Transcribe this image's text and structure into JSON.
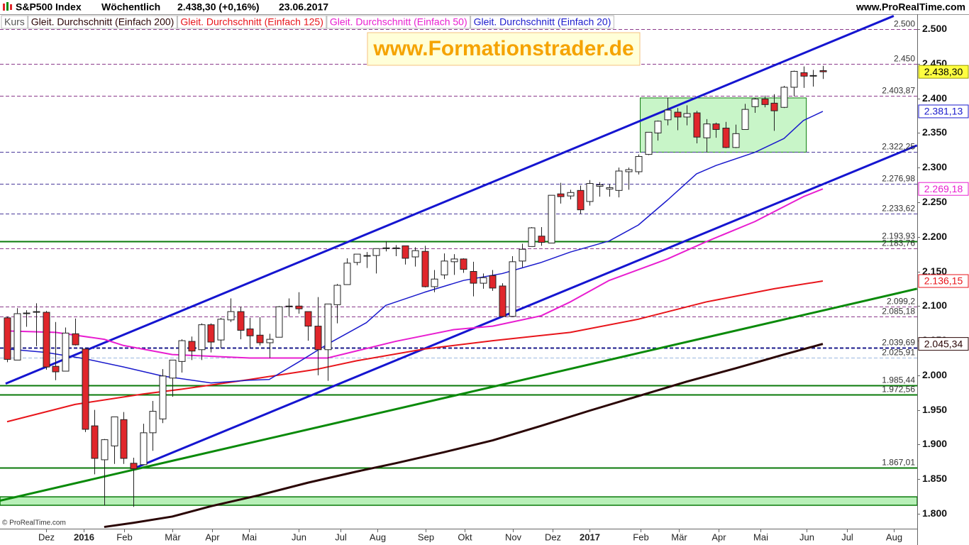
{
  "header": {
    "title": "S&P500 Index",
    "period": "Wöchentlich",
    "quote": "2.438,30 (+0,16%)",
    "date": "23.06.2017",
    "source": "www.ProRealTime.com"
  },
  "watermark": "www.Formationstrader.de",
  "copyright": "© ProRealTime.com",
  "chart_data": {
    "type": "candlestick",
    "legend_label": "Kurs",
    "candles": {
      "open": [
        2083,
        2022,
        2089,
        2091,
        2091,
        2013,
        2006,
        2060,
        2038,
        1927,
        1878,
        1898,
        1936,
        1873,
        1871,
        1917,
        1937,
        1996,
        2020,
        2049,
        2037,
        2073,
        2051,
        2080,
        2092,
        2067,
        2058,
        2047,
        2055,
        2100,
        2100,
        2092,
        2071,
        2037,
        2102,
        2131,
        2163,
        2173,
        2173,
        2184,
        2183,
        2187,
        2171,
        2179,
        2128,
        2145,
        2164,
        2168,
        2150,
        2133,
        2144,
        2129,
        2085,
        2165,
        2186,
        2201,
        2191,
        2262,
        2259,
        2267,
        2251,
        2273,
        2269,
        2267,
        2294,
        2294,
        2319,
        2350,
        2369,
        2380,
        2373,
        2379,
        2343,
        2363,
        2357,
        2329,
        2355,
        2388,
        2399,
        2393,
        2387,
        2416,
        2437,
        2432,
        2440
      ],
      "high": [
        2085,
        2097,
        2094,
        2104,
        2093,
        2077,
        2069,
        2082,
        2038,
        1950,
        1908,
        1940,
        1947,
        1881,
        1930,
        1963,
        2009,
        2022,
        2052,
        2056,
        2075,
        2075,
        2083,
        2111,
        2099,
        2083,
        2084,
        2060,
        2100,
        2111,
        2120,
        2092,
        2113,
        2103,
        2132,
        2169,
        2175,
        2178,
        2183,
        2194,
        2188,
        2187,
        2185,
        2187,
        2152,
        2176,
        2175,
        2169,
        2164,
        2147,
        2152,
        2133,
        2172,
        2190,
        2214,
        2214,
        2260,
        2278,
        2268,
        2274,
        2282,
        2279,
        2276,
        2300,
        2300,
        2319,
        2351,
        2368,
        2401,
        2386,
        2390,
        2382,
        2370,
        2365,
        2366,
        2362,
        2392,
        2401,
        2404,
        2406,
        2418,
        2440,
        2446,
        2441,
        2447
      ],
      "low": [
        2019,
        2022,
        2070,
        2042,
        2008,
        1993,
        2006,
        2043,
        1918,
        1857,
        1812,
        1872,
        1872,
        1810,
        1871,
        1891,
        1931,
        1969,
        2004,
        2022,
        2022,
        2033,
        2039,
        2077,
        2052,
        2039,
        2043,
        2025,
        2055,
        2085,
        2089,
        2050,
        2000,
        1992,
        2075,
        2131,
        2159,
        2155,
        2147,
        2179,
        2172,
        2160,
        2157,
        2127,
        2120,
        2139,
        2145,
        2148,
        2114,
        2125,
        2122,
        2084,
        2084,
        2156,
        2186,
        2187,
        2191,
        2248,
        2254,
        2233,
        2245,
        2258,
        2258,
        2257,
        2268,
        2290,
        2318,
        2339,
        2361,
        2354,
        2361,
        2335,
        2322,
        2343,
        2328,
        2328,
        2355,
        2379,
        2387,
        2353,
        2386,
        2403,
        2415,
        2417,
        2428
      ],
      "close": [
        2023,
        2089,
        2090,
        2092,
        2012,
        2005,
        2061,
        2044,
        1922,
        1880,
        1907,
        1940,
        1880,
        1865,
        1917,
        1948,
        1999,
        2022,
        2050,
        2035,
        2073,
        2048,
        2081,
        2092,
        2065,
        2057,
        2047,
        2052,
        2099,
        2099,
        2096,
        2071,
        2037,
        2103,
        2130,
        2162,
        2175,
        2173,
        2183,
        2184,
        2184,
        2169,
        2180,
        2128,
        2139,
        2165,
        2168,
        2153,
        2133,
        2141,
        2126,
        2085,
        2164,
        2182,
        2213,
        2192,
        2260,
        2258,
        2264,
        2239,
        2277,
        2275,
        2271,
        2295,
        2297,
        2316,
        2351,
        2367,
        2383,
        2373,
        2378,
        2344,
        2363,
        2355,
        2329,
        2349,
        2384,
        2399,
        2391,
        2382,
        2416,
        2439,
        2432,
        2433,
        2438.3
      ],
      "up_color": "#ffffff",
      "down_color": "#e0262b",
      "last_close_label": "2.438,30"
    },
    "series": [
      {
        "name": "Gleit. Durchschnitt (Einfach 200)",
        "color": "#2a0505",
        "width": 3,
        "x": [
          10,
          13,
          17,
          21,
          26,
          31,
          36,
          40,
          45,
          50,
          55,
          60,
          65,
          70,
          75,
          80,
          84
        ],
        "values": [
          1781,
          1787,
          1796,
          1811,
          1827,
          1845,
          1861,
          1873,
          1889,
          1906,
          1927,
          1949,
          1970,
          1991,
          2010,
          2030,
          2045.34
        ],
        "value_labels": [
          null,
          null,
          null,
          null,
          null,
          null,
          null,
          null,
          null,
          null,
          null,
          null,
          null,
          null,
          null,
          null,
          "2.045,34"
        ]
      },
      {
        "name": "Gleit. Durchschnitt (Einfach 125)",
        "color": "#e8151b",
        "width": 2,
        "x": [
          0,
          7,
          14,
          18,
          25,
          32,
          36,
          43,
          50,
          58,
          65,
          72,
          79,
          84
        ],
        "values": [
          1933,
          1958,
          1973,
          1980,
          1994,
          2009,
          2021,
          2038,
          2050,
          2062,
          2081,
          2106,
          2125,
          2136.15
        ],
        "value_labels": [
          null,
          null,
          null,
          null,
          null,
          null,
          null,
          null,
          null,
          null,
          null,
          null,
          null,
          "2.136,15"
        ]
      },
      {
        "name": "Gleit. Durchschnitt (Einfach 50)",
        "color": "#e81ed0",
        "width": 2,
        "x": [
          0,
          5,
          10,
          12,
          17,
          25,
          33,
          40,
          46,
          50,
          55,
          58,
          62,
          68,
          72,
          77,
          82,
          84
        ],
        "values": [
          2064,
          2062,
          2052,
          2043,
          2030,
          2025,
          2025,
          2049,
          2066,
          2071,
          2086,
          2106,
          2137,
          2168,
          2193,
          2222,
          2258,
          2269.18
        ],
        "value_labels": [
          null,
          null,
          null,
          null,
          null,
          null,
          null,
          null,
          null,
          null,
          null,
          null,
          null,
          null,
          null,
          null,
          null,
          "2.269,18"
        ]
      },
      {
        "name": "Gleit. Durchschnitt (Einfach 20)",
        "color": "#1a1acc",
        "width": 1.5,
        "x": [
          0,
          4,
          8,
          12,
          16,
          21,
          25,
          27,
          30,
          33,
          37,
          39,
          43,
          47,
          51,
          55,
          58,
          62,
          65,
          68,
          71,
          73,
          77,
          80,
          82,
          84
        ],
        "values": [
          2038,
          2033,
          2024,
          2012,
          1999,
          1989,
          1993,
          1994,
          2019,
          2045,
          2076,
          2101,
          2120,
          2137,
          2147,
          2163,
          2178,
          2194,
          2217,
          2253,
          2291,
          2303,
          2322,
          2342,
          2368,
          2381.13
        ],
        "value_labels": [
          null,
          null,
          null,
          null,
          null,
          null,
          null,
          null,
          null,
          null,
          null,
          null,
          null,
          null,
          null,
          null,
          null,
          null,
          null,
          null,
          null,
          null,
          null,
          null,
          null,
          "2.381,13"
        ]
      }
    ],
    "levels": [
      {
        "value": 2500,
        "label": "2.500",
        "color": "#8b3a8b",
        "style": "dashed",
        "width": 1
      },
      {
        "value": 2450,
        "label": "2.450",
        "color": "#8b3a8b",
        "style": "dashed",
        "width": 1
      },
      {
        "value": 2403.87,
        "label": "2.403,87",
        "color": "#8b3a8b",
        "style": "dashed",
        "width": 1
      },
      {
        "value": 2322.25,
        "label": "2.322,25",
        "color": "#4a3a9b",
        "style": "dashed",
        "width": 1
      },
      {
        "value": 2276.98,
        "label": "2.276,98",
        "color": "#4a3a9b",
        "style": "dashed",
        "width": 1
      },
      {
        "value": 2233.62,
        "label": "2.233,62",
        "color": "#4a3a9b",
        "style": "dashed",
        "width": 1
      },
      {
        "value": 2193.93,
        "label": "2.193,93",
        "color": "#0a7a0a",
        "style": "solid",
        "width": 2
      },
      {
        "value": 2183.76,
        "label": "2.183,76",
        "color": "#8b3a8b",
        "style": "dashed",
        "width": 1
      },
      {
        "value": 2099.2,
        "label": "2.099,2",
        "color": "#8b3a8b",
        "style": "dashed",
        "width": 1
      },
      {
        "value": 2085.18,
        "label": "2.085,18",
        "color": "#8b3a8b",
        "style": "dashed",
        "width": 1
      },
      {
        "value": 2039.69,
        "label": "2.039,69",
        "color": "#1a1a8b",
        "style": "dashed",
        "width": 2
      },
      {
        "value": 2025.91,
        "label": "2.025,91",
        "color": "#9ab8e0",
        "style": "dashed",
        "width": 1
      },
      {
        "value": 1985.44,
        "label": "1.985,44",
        "color": "#0a7a0a",
        "style": "solid",
        "width": 2
      },
      {
        "value": 1972.56,
        "label": "1.972,56",
        "color": "#0a7a0a",
        "style": "solid",
        "width": 2
      },
      {
        "value": 1867.01,
        "label": "1.867,01",
        "color": "#0a7a0a",
        "style": "solid",
        "width": 2
      }
    ],
    "zone": {
      "values": [
        1812.3,
        1824.5
      ],
      "color": "#b8f0b8",
      "border": "#0a7a0a"
    },
    "box": {
      "x": [
        65.2,
        82.3
      ],
      "values": [
        2322.25,
        2400.6
      ],
      "color": "#c8f5c8",
      "border": "#0a7a0a"
    },
    "trendlines": [
      {
        "color": "#1515d0",
        "x": [
          -0.15,
          91.3
        ],
        "values": [
          1988,
          2519
        ]
      },
      {
        "color": "#1515d0",
        "x": [
          13.15,
          93.7
        ],
        "values": [
          1866,
          2332
        ]
      },
      {
        "color": "#0a8a0a",
        "x": [
          -0.73,
          93.7
        ],
        "values": [
          1819,
          2125
        ]
      }
    ],
    "xlim": [
      -0.73,
      93.72
    ],
    "xticks": [
      {
        "value": 4,
        "label": "Dez"
      },
      {
        "value": 7.9,
        "label": "2016"
      },
      {
        "value": 12.05,
        "label": "Feb"
      },
      {
        "value": 17,
        "label": "Mär"
      },
      {
        "value": 21.1,
        "label": "Apr"
      },
      {
        "value": 24.9,
        "label": "Mai"
      },
      {
        "value": 30,
        "label": "Jun"
      },
      {
        "value": 34.3,
        "label": "Jul"
      },
      {
        "value": 38.1,
        "label": "Aug"
      },
      {
        "value": 43.1,
        "label": "Sep"
      },
      {
        "value": 47.1,
        "label": "Okt"
      },
      {
        "value": 52.1,
        "label": "Nov"
      },
      {
        "value": 56.2,
        "label": "Dez"
      },
      {
        "value": 60,
        "label": "2017"
      },
      {
        "value": 65.2,
        "label": "Feb"
      },
      {
        "value": 69.2,
        "label": "Mär"
      },
      {
        "value": 73.3,
        "label": "Apr"
      },
      {
        "value": 77.6,
        "label": "Mai"
      },
      {
        "value": 82.3,
        "label": "Jun"
      },
      {
        "value": 86.5,
        "label": "Jul"
      },
      {
        "value": 91.3,
        "label": "Aug"
      }
    ],
    "ylim": [
      1778.5,
      2521.5
    ],
    "yticks": [
      {
        "value": 1800,
        "label": "1.800"
      },
      {
        "value": 1850,
        "label": "1.850"
      },
      {
        "value": 1900,
        "label": "1.900"
      },
      {
        "value": 1950,
        "label": "1.950"
      },
      {
        "value": 2000,
        "label": "2.000"
      },
      {
        "value": 2050,
        "label": "2.050"
      },
      {
        "value": 2100,
        "label": "2.100"
      },
      {
        "value": 2150,
        "label": "2.150"
      },
      {
        "value": 2200,
        "label": "2.200"
      },
      {
        "value": 2250,
        "label": "2.250"
      },
      {
        "value": 2300,
        "label": "2.300"
      },
      {
        "value": 2350,
        "label": "2.350"
      },
      {
        "value": 2400,
        "label": "2.400"
      },
      {
        "value": 2450,
        "label": "2.450"
      },
      {
        "value": 2500,
        "label": "2.500"
      }
    ]
  }
}
